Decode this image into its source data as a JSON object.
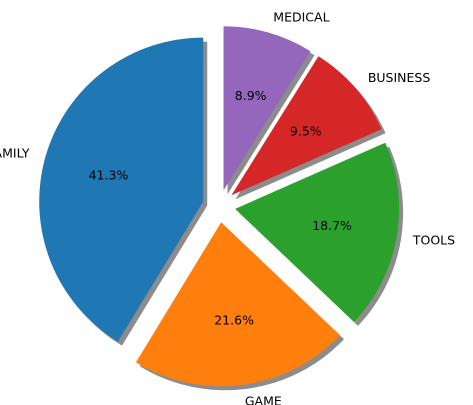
{
  "chart_data": {
    "type": "pie",
    "categories": [
      "FAMILY",
      "GAME",
      "TOOLS",
      "BUSINESS",
      "MEDICAL"
    ],
    "values": [
      41.3,
      21.6,
      18.7,
      9.5,
      8.9
    ],
    "percent_labels": [
      "41.3%",
      "21.6%",
      "18.7%",
      "9.5%",
      "8.9%"
    ],
    "colors": [
      "#1f77b4",
      "#ff7f0e",
      "#2ca02c",
      "#d62728",
      "#9467bd"
    ],
    "explode": [
      0.1,
      0.1,
      0.1,
      0.1,
      0.1
    ],
    "start_angle_deg": 90,
    "counterclockwise": true,
    "shadow": true
  }
}
